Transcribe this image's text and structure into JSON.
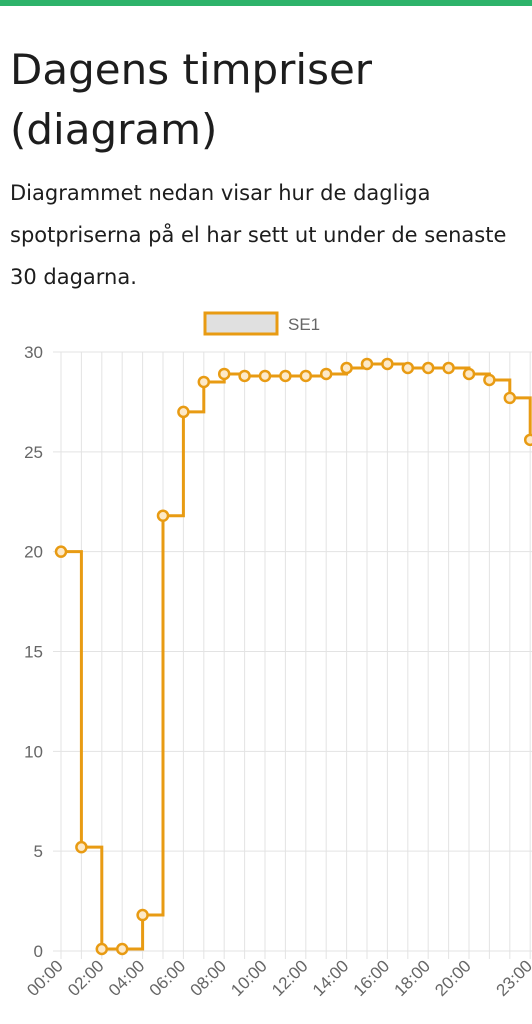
{
  "page": {
    "title": "Dagens timpriser (diagram)",
    "intro_lines": [
      "Diagrammet nedan visar hur de dagliga",
      "spotpriserna på el har sett ut under de senaste",
      "30 dagarna."
    ],
    "accent_color": "#2db36a"
  },
  "chart_data": {
    "type": "line",
    "step": true,
    "legend": {
      "label": "SE1",
      "position": "top"
    },
    "series": [
      {
        "name": "SE1",
        "color": "#e89b13",
        "values": [
          20.0,
          5.2,
          0.1,
          0.1,
          1.8,
          21.8,
          27.0,
          28.5,
          28.9,
          28.8,
          28.8,
          28.8,
          28.8,
          28.9,
          29.2,
          29.4,
          29.4,
          29.2,
          29.2,
          29.2,
          28.9,
          28.6,
          27.7,
          25.6
        ]
      }
    ],
    "x": [
      "00:00",
      "01:00",
      "02:00",
      "03:00",
      "04:00",
      "05:00",
      "06:00",
      "07:00",
      "08:00",
      "09:00",
      "10:00",
      "11:00",
      "12:00",
      "13:00",
      "14:00",
      "15:00",
      "16:00",
      "17:00",
      "18:00",
      "19:00",
      "20:00",
      "21:00",
      "22:00",
      "23:00"
    ],
    "x_tick_labels": [
      "00:00",
      "02:00",
      "04:00",
      "06:00",
      "08:00",
      "10:00",
      "12:00",
      "14:00",
      "16:00",
      "18:00",
      "20:00",
      "23:00"
    ],
    "y_ticks": [
      0,
      5,
      10,
      15,
      20,
      25,
      30
    ],
    "ylim": [
      0,
      30
    ],
    "grid": true,
    "xlabel": "",
    "ylabel": ""
  }
}
